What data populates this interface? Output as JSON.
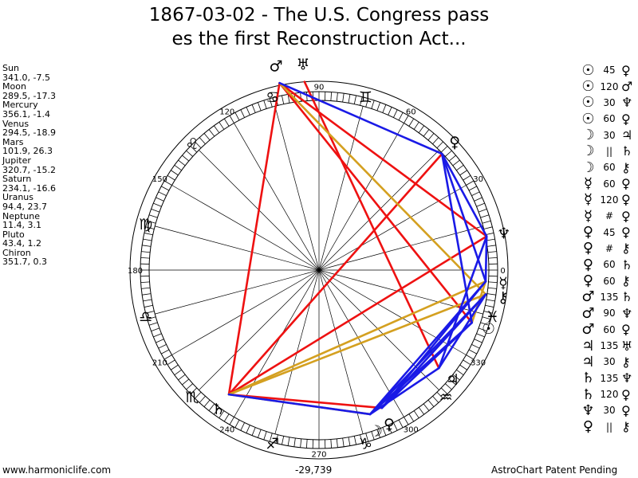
{
  "title": {
    "line1": "1867-03-02 - The U.S. Congress pass",
    "line2": "es the first Reconstruction Act..."
  },
  "planets": [
    {
      "name": "Sun",
      "coords": "341.0, -7.5"
    },
    {
      "name": "Moon",
      "coords": "289.5, -17.3"
    },
    {
      "name": "Mercury",
      "coords": "356.1, -1.4"
    },
    {
      "name": "Venus",
      "coords": "294.5, -18.9"
    },
    {
      "name": "Mars",
      "coords": "101.9, 26.3"
    },
    {
      "name": "Jupiter",
      "coords": "320.7, -15.2"
    },
    {
      "name": "Saturn",
      "coords": "234.1, -16.6"
    },
    {
      "name": "Uranus",
      "coords": "94.4, 23.7"
    },
    {
      "name": "Neptune",
      "coords": "11.4, 3.1"
    },
    {
      "name": "Pluto",
      "coords": "43.4, 1.2"
    },
    {
      "name": "Chiron",
      "coords": "351.7, 0.3"
    }
  ],
  "aspects": [
    {
      "p1": "☉",
      "angle": "45",
      "p2": "♀"
    },
    {
      "p1": "☉",
      "angle": "120",
      "p2": "♂"
    },
    {
      "p1": "☉",
      "angle": "30",
      "p2": "♆"
    },
    {
      "p1": "☉",
      "angle": "60",
      "p2": "♀"
    },
    {
      "p1": "☽",
      "angle": "30",
      "p2": "♃"
    },
    {
      "p1": "☽",
      "angle": "||",
      "p2": "♄"
    },
    {
      "p1": "☽",
      "angle": "60",
      "p2": "⚷"
    },
    {
      "p1": "☿",
      "angle": "60",
      "p2": "♀"
    },
    {
      "p1": "☿",
      "angle": "120",
      "p2": "♀"
    },
    {
      "p1": "☿",
      "angle": "#",
      "p2": "♀"
    },
    {
      "p1": "♀",
      "angle": "45",
      "p2": "♀"
    },
    {
      "p1": "♀",
      "angle": "#",
      "p2": "⚷"
    },
    {
      "p1": "♀",
      "angle": "60",
      "p2": "♄"
    },
    {
      "p1": "♀",
      "angle": "60",
      "p2": "⚷"
    },
    {
      "p1": "♂",
      "angle": "135",
      "p2": "♄"
    },
    {
      "p1": "♂",
      "angle": "90",
      "p2": "♆"
    },
    {
      "p1": "♂",
      "angle": "60",
      "p2": "♀"
    },
    {
      "p1": "♃",
      "angle": "135",
      "p2": "♅"
    },
    {
      "p1": "♃",
      "angle": "30",
      "p2": "⚷"
    },
    {
      "p1": "♄",
      "angle": "135",
      "p2": "♆"
    },
    {
      "p1": "♄",
      "angle": "120",
      "p2": "♀"
    },
    {
      "p1": "♆",
      "angle": "30",
      "p2": "♀"
    },
    {
      "p1": "♀",
      "angle": "||",
      "p2": "⚷"
    }
  ],
  "wheel": {
    "degree_labels": [
      "0",
      "30",
      "60",
      "90",
      "120",
      "150",
      "180",
      "210",
      "240",
      "270",
      "300",
      "330"
    ],
    "signs": [
      {
        "glyph": "♓",
        "lon": 345
      },
      {
        "glyph": "♒",
        "lon": 315
      },
      {
        "glyph": "♑",
        "lon": 285
      },
      {
        "glyph": "♐",
        "lon": 255
      },
      {
        "glyph": "♏",
        "lon": 225
      },
      {
        "glyph": "♎",
        "lon": 195
      },
      {
        "glyph": "♍",
        "lon": 165
      },
      {
        "glyph": "♌",
        "lon": 135
      },
      {
        "glyph": "♋",
        "lon": 105
      },
      {
        "glyph": "♊",
        "lon": 75
      }
    ],
    "bodies": [
      {
        "id": "sun",
        "glyph": "☉",
        "lon": 341.0,
        "dec": -7.5
      },
      {
        "id": "moon",
        "glyph": "☽",
        "lon": 289.5,
        "dec": -17.3
      },
      {
        "id": "mercury",
        "glyph": "☿",
        "lon": 356.1,
        "dec": -1.4
      },
      {
        "id": "venus",
        "glyph": "♀",
        "lon": 294.5,
        "dec": -18.9
      },
      {
        "id": "mars",
        "glyph": "♂",
        "lon": 101.9,
        "dec": 26.3
      },
      {
        "id": "jupiter",
        "glyph": "♃",
        "lon": 320.7,
        "dec": -15.2
      },
      {
        "id": "saturn",
        "glyph": "♄",
        "lon": 234.1,
        "dec": -16.6
      },
      {
        "id": "uranus",
        "glyph": "♅",
        "lon": 94.4,
        "dec": 23.7
      },
      {
        "id": "neptune",
        "glyph": "♆",
        "lon": 11.4,
        "dec": 3.1
      },
      {
        "id": "pluto",
        "glyph": "♀",
        "lon": 43.4,
        "dec": 1.2
      },
      {
        "id": "chiron",
        "glyph": "⚷",
        "lon": 351.7,
        "dec": 0.3
      }
    ],
    "aspect_lines": [
      {
        "a": "mars",
        "b": "saturn",
        "color": "#ee1111"
      },
      {
        "a": "mars",
        "b": "neptune",
        "color": "#ee1111"
      },
      {
        "a": "mars",
        "b": "sun",
        "color": "#ee1111"
      },
      {
        "a": "uranus",
        "b": "jupiter",
        "color": "#ee1111"
      },
      {
        "a": "saturn",
        "b": "neptune",
        "color": "#ee1111"
      },
      {
        "a": "saturn",
        "b": "pluto",
        "color": "#ee1111"
      },
      {
        "a": "saturn",
        "b": "venus",
        "color": "#ee1111"
      },
      {
        "a": "mars",
        "b": "chiron",
        "color": "#d4a020"
      },
      {
        "a": "saturn",
        "b": "mercury",
        "color": "#d4a020"
      },
      {
        "a": "saturn",
        "b": "chiron",
        "color": "#d4a020"
      },
      {
        "a": "saturn",
        "b": "moon",
        "color": "#d4a020"
      },
      {
        "a": "sun",
        "b": "mercury",
        "color": "#d4a020"
      },
      {
        "a": "mars",
        "b": "pluto",
        "color": "#1a1ae6"
      },
      {
        "a": "pluto",
        "b": "neptune",
        "color": "#1a1ae6"
      },
      {
        "a": "pluto",
        "b": "mercury",
        "color": "#1a1ae6"
      },
      {
        "a": "pluto",
        "b": "sun",
        "color": "#1a1ae6"
      },
      {
        "a": "venus",
        "b": "chiron",
        "color": "#1a1ae6"
      },
      {
        "a": "venus",
        "b": "mercury",
        "color": "#1a1ae6"
      },
      {
        "a": "venus",
        "b": "sun",
        "color": "#1a1ae6"
      },
      {
        "a": "moon",
        "b": "sun",
        "color": "#1a1ae6"
      },
      {
        "a": "moon",
        "b": "mercury",
        "color": "#1a1ae6"
      },
      {
        "a": "moon",
        "b": "chiron",
        "color": "#1a1ae6"
      },
      {
        "a": "moon",
        "b": "jupiter",
        "color": "#1a1ae6"
      },
      {
        "a": "jupiter",
        "b": "chiron",
        "color": "#1a1ae6"
      },
      {
        "a": "saturn",
        "b": "moon",
        "color": "#1a1ae6"
      },
      {
        "a": "neptune",
        "b": "mercury",
        "color": "#1a1ae6"
      },
      {
        "a": "jupiter",
        "b": "neptune",
        "color": "#1a1ae6"
      }
    ]
  },
  "footer": {
    "left": "www.harmoniclife.com",
    "center": "-29,739",
    "right": "AstroChart Patent Pending"
  }
}
